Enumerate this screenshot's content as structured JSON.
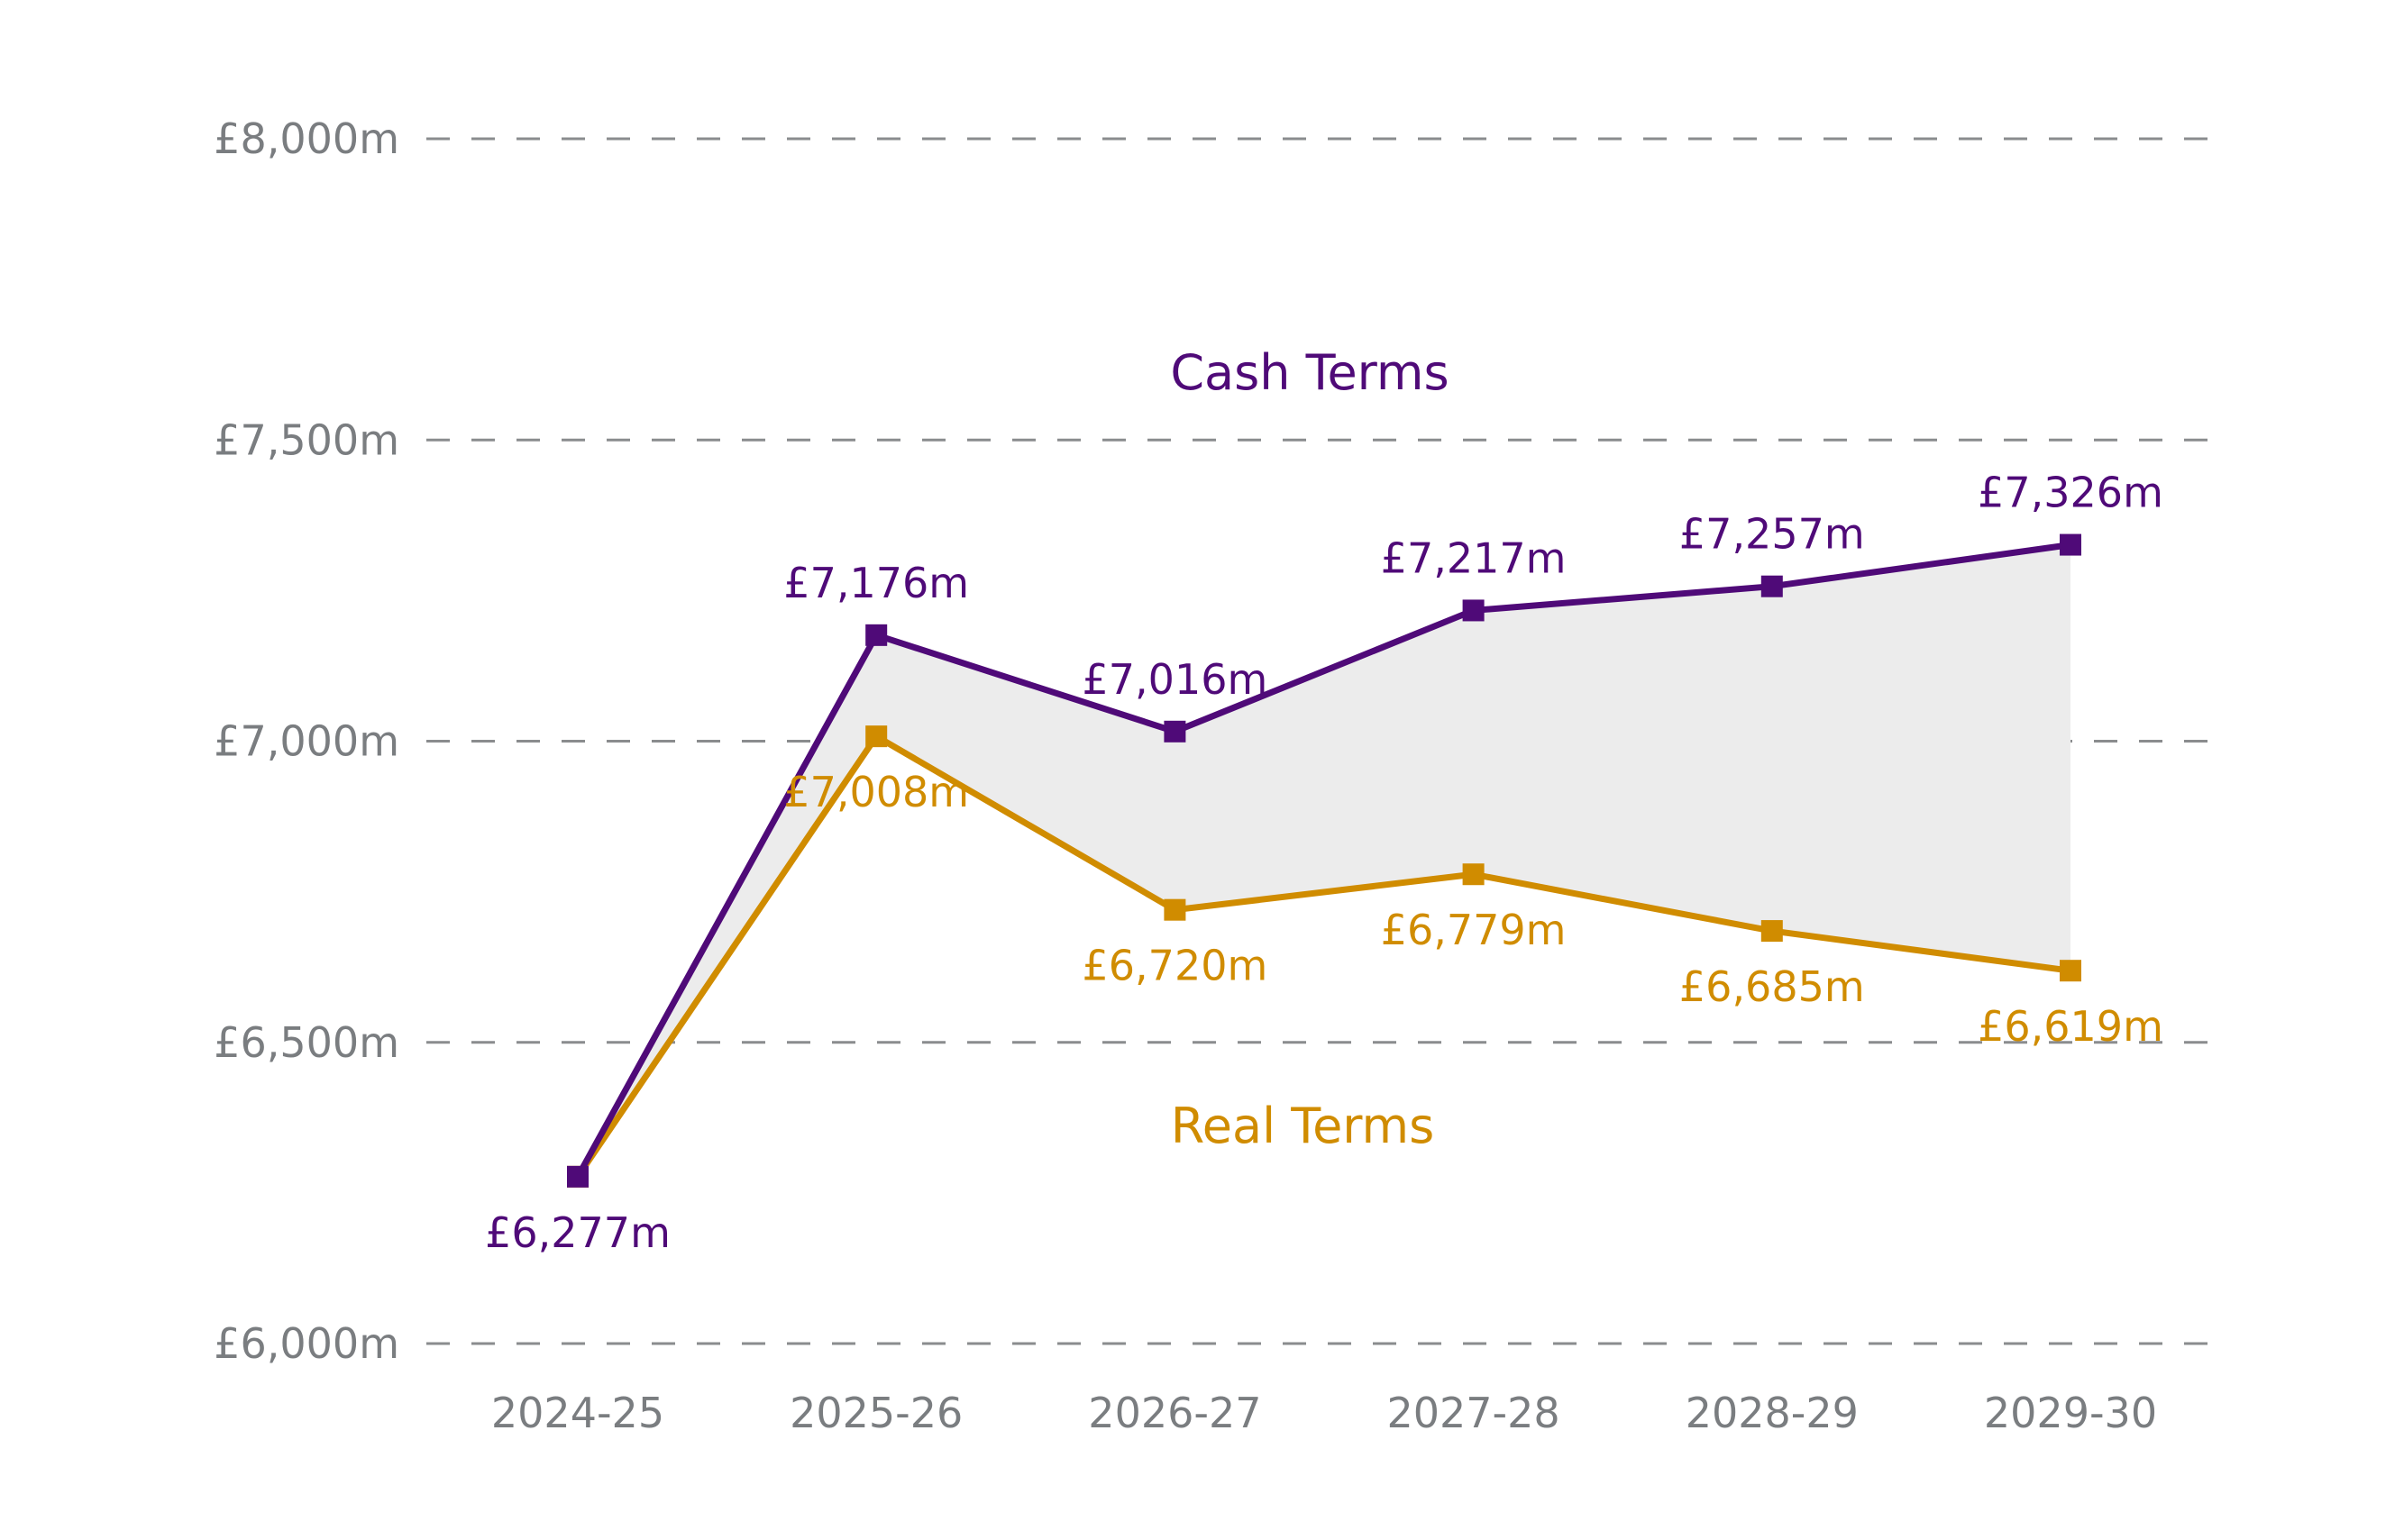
{
  "chart_data": {
    "type": "line",
    "title": "",
    "xlabel": "",
    "ylabel": "",
    "categories": [
      "2024-25",
      "2025-26",
      "2026-27",
      "2027-28",
      "2028-29",
      "2029-30"
    ],
    "ylim": [
      6000,
      8000
    ],
    "yticks": [
      6000,
      6500,
      7000,
      7500,
      8000
    ],
    "ytick_labels": [
      "£6,000m",
      "£6,500m",
      "£7,000m",
      "£7,500m",
      "£8,000m"
    ],
    "grid": true,
    "gap_fill_color": "#ececec",
    "series": [
      {
        "name": "Cash Terms",
        "color": "#4f0a78",
        "values": [
          6277,
          7176,
          7016,
          7217,
          7257,
          7326
        ],
        "labels": [
          "£6,277m",
          "£7,176m",
          "£7,016m",
          "£7,217m",
          "£7,257m",
          "£7,326m"
        ]
      },
      {
        "name": "Real Terms",
        "color": "#d08c00",
        "values": [
          6277,
          7008,
          6720,
          6779,
          6685,
          6619
        ],
        "labels": [
          "",
          "£7,008m",
          "£6,720m",
          "£6,779m",
          "£6,685m",
          "£6,619m"
        ]
      }
    ]
  }
}
